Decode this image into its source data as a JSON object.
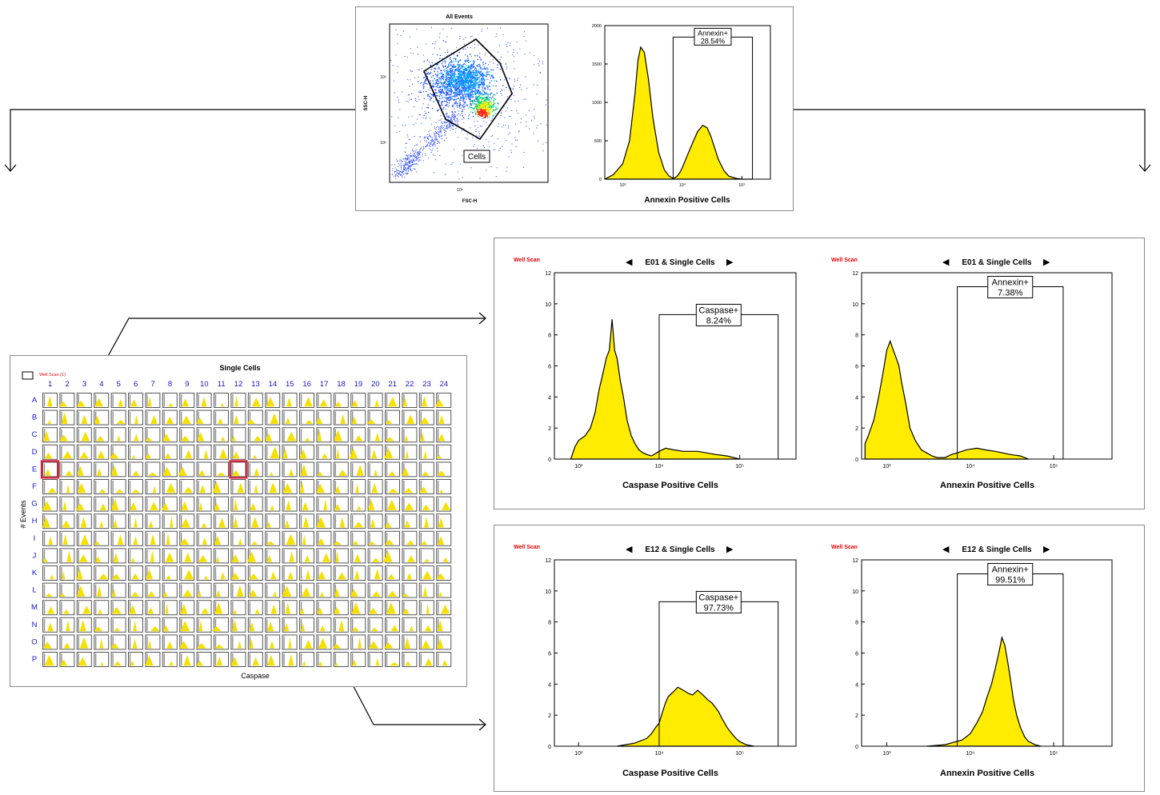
{
  "top": {
    "scatter": {
      "title": "All Events",
      "xlabel": "FSC-H",
      "ylabel": "SSC-H",
      "x_ticks": [
        "10⁶"
      ],
      "y_ticks": [
        "10⁶",
        "10⁵"
      ],
      "gate_label": "Cells"
    },
    "histogram": {
      "xlabel": "Annexin Positive Cells",
      "y_ticks": [
        "2000",
        "1500",
        "1000",
        "500",
        "0"
      ],
      "x_ticks": [
        "10³",
        "10⁴",
        "10⁵"
      ],
      "gate_name": "Annexin+",
      "gate_pct": "28.54%"
    }
  },
  "plate": {
    "title": "Single Cells",
    "legend": "Well Scan (1)",
    "xlabel": "Caspase",
    "ylabel": "# Events",
    "columns": [
      "1",
      "2",
      "3",
      "4",
      "5",
      "6",
      "7",
      "8",
      "9",
      "10",
      "11",
      "12",
      "13",
      "14",
      "15",
      "16",
      "17",
      "18",
      "19",
      "20",
      "21",
      "22",
      "23",
      "24"
    ],
    "rows": [
      "A",
      "B",
      "C",
      "D",
      "E",
      "F",
      "G",
      "H",
      "I",
      "J",
      "K",
      "L",
      "M",
      "N",
      "O",
      "P"
    ],
    "highlighted": [
      "E1",
      "E12"
    ]
  },
  "well_panels": [
    {
      "tag": "Well Scan",
      "nav_prev": "◀",
      "nav_next": "▶",
      "title": "E01 & Single Cells",
      "left": {
        "xlabel": "Caspase Positive Cells",
        "gate_name": "Caspase+",
        "gate_pct": "8.24%"
      },
      "right": {
        "xlabel": "Annexin Positive Cells",
        "gate_name": "Annexin+",
        "gate_pct": "7.38%"
      }
    },
    {
      "tag": "Well Scan",
      "nav_prev": "◀",
      "nav_next": "▶",
      "title": "E12 & Single Cells",
      "left": {
        "xlabel": "Caspase Positive Cells",
        "gate_name": "Caspase+",
        "gate_pct": "97.73%"
      },
      "right": {
        "xlabel": "Annexin Positive Cells",
        "gate_name": "Annexin+",
        "gate_pct": "99.51%"
      }
    }
  ],
  "hist_axes": {
    "y_ticks": [
      "12",
      "10",
      "8",
      "6",
      "4",
      "2",
      "0"
    ],
    "x_ticks": [
      "10³",
      "10⁴",
      "10⁵"
    ]
  },
  "chart_data": [
    {
      "type": "scatter",
      "title": "All Events",
      "xlabel": "FSC-H",
      "ylabel": "SSC-H",
      "x_scale": "log",
      "y_scale": "log",
      "gates": [
        {
          "name": "Cells",
          "shape": "polygon"
        }
      ],
      "density_colors": [
        "#0000ff",
        "#00c0ff",
        "#00ff00",
        "#ffff00",
        "#ff0000"
      ]
    },
    {
      "type": "area",
      "xlabel": "Annexin Positive Cells",
      "x_scale": "log",
      "xlim": [
        500,
        300000
      ],
      "ylim": [
        0,
        2000
      ],
      "fill_color": "#ffec00",
      "x": [
        500,
        700,
        1000,
        1300,
        1600,
        1800,
        2000,
        2300,
        2700,
        3200,
        4000,
        5000,
        6000,
        7000,
        8000,
        9000,
        10000,
        12000,
        15000,
        18000,
        22000,
        26000,
        30000,
        35000,
        40000,
        50000,
        60000,
        80000,
        100000,
        150000
      ],
      "y": [
        0,
        60,
        200,
        500,
        1100,
        1550,
        1720,
        1650,
        1300,
        800,
        350,
        120,
        40,
        10,
        30,
        80,
        150,
        300,
        480,
        620,
        700,
        670,
        560,
        400,
        260,
        110,
        40,
        10,
        0,
        0
      ],
      "gate": {
        "name": "Annexin+",
        "percent": 28.54,
        "x_range": [
          7000,
          150000
        ],
        "height": 1850
      }
    },
    {
      "type": "area",
      "well": "E01",
      "xlabel": "Caspase Positive Cells",
      "x_scale": "log",
      "xlim": [
        500,
        500000
      ],
      "ylim": [
        0,
        12
      ],
      "x": [
        800,
        900,
        1000,
        1200,
        1400,
        1600,
        1800,
        2000,
        2200,
        2400,
        2600,
        2800,
        3000,
        3300,
        3600,
        4000,
        4500,
        5000,
        5600,
        6300,
        7000,
        8000,
        10000,
        12000,
        15000,
        20000,
        30000,
        50000,
        70000,
        100000
      ],
      "y": [
        0,
        0.8,
        1.2,
        1.5,
        2.0,
        3.0,
        4.5,
        5.5,
        6.5,
        7.0,
        9.0,
        7.0,
        6.5,
        5.0,
        4.0,
        2.5,
        1.5,
        1.0,
        0.6,
        0.4,
        0.3,
        0.2,
        0.5,
        0.7,
        0.6,
        0.5,
        0.5,
        0.3,
        0.2,
        0
      ],
      "gate": {
        "name": "Caspase+",
        "percent": 8.24,
        "x_range": [
          10000,
          300000
        ],
        "height": 9.3
      }
    },
    {
      "type": "area",
      "well": "E01",
      "xlabel": "Annexin Positive Cells",
      "x_scale": "log",
      "xlim": [
        500,
        500000
      ],
      "ylim": [
        0,
        12
      ],
      "x": [
        550,
        600,
        700,
        800,
        900,
        1000,
        1100,
        1200,
        1300,
        1400,
        1500,
        1700,
        1900,
        2200,
        2600,
        3000,
        3500,
        4000,
        5000,
        6000,
        7000,
        9000,
        12000,
        15000,
        20000,
        30000,
        40000,
        50000
      ],
      "y": [
        1.0,
        1.5,
        2.5,
        4.0,
        5.5,
        7.0,
        7.6,
        7.0,
        6.5,
        6.0,
        5.0,
        3.5,
        2.0,
        1.2,
        0.6,
        0.4,
        0.2,
        0.1,
        0.1,
        0.3,
        0.4,
        0.6,
        0.7,
        0.6,
        0.5,
        0.3,
        0.2,
        0
      ],
      "gate": {
        "name": "Annexin+",
        "percent": 7.38,
        "x_range": [
          7000,
          130000
        ],
        "height": 11.1
      }
    },
    {
      "type": "area",
      "well": "E12",
      "xlabel": "Caspase Positive Cells",
      "x_scale": "log",
      "xlim": [
        500,
        500000
      ],
      "ylim": [
        0,
        12
      ],
      "x": [
        3000,
        5000,
        7000,
        8000,
        9000,
        10000,
        11000,
        12000,
        13000,
        15000,
        17000,
        20000,
        23000,
        26000,
        30000,
        35000,
        40000,
        45000,
        50000,
        55000,
        60000,
        70000,
        80000,
        90000,
        100000,
        120000,
        150000
      ],
      "y": [
        0,
        0.2,
        0.5,
        0.8,
        1.2,
        1.5,
        2.2,
        2.8,
        3.2,
        3.5,
        3.8,
        3.6,
        3.4,
        3.3,
        3.6,
        3.3,
        3.0,
        2.8,
        2.5,
        2.2,
        1.8,
        1.2,
        0.8,
        0.5,
        0.3,
        0.1,
        0
      ],
      "gate": {
        "name": "Caspase+",
        "percent": 97.73,
        "x_range": [
          10000,
          300000
        ],
        "height": 9.3
      }
    },
    {
      "type": "area",
      "well": "E12",
      "xlabel": "Annexin Positive Cells",
      "x_scale": "log",
      "xlim": [
        500,
        500000
      ],
      "ylim": [
        0,
        12
      ],
      "x": [
        3000,
        5000,
        8000,
        10000,
        12000,
        14000,
        16000,
        18000,
        20000,
        22000,
        24000,
        26000,
        28000,
        30000,
        33000,
        36000,
        40000,
        45000,
        50000,
        60000,
        70000
      ],
      "y": [
        0,
        0.1,
        0.4,
        0.8,
        1.5,
        2.2,
        3.2,
        4.0,
        5.0,
        6.0,
        7.0,
        6.5,
        5.5,
        4.5,
        3.0,
        2.0,
        1.2,
        0.6,
        0.3,
        0.1,
        0
      ],
      "gate": {
        "name": "Annexin+",
        "percent": 99.51,
        "x_range": [
          7000,
          130000
        ],
        "height": 11.1
      }
    }
  ]
}
